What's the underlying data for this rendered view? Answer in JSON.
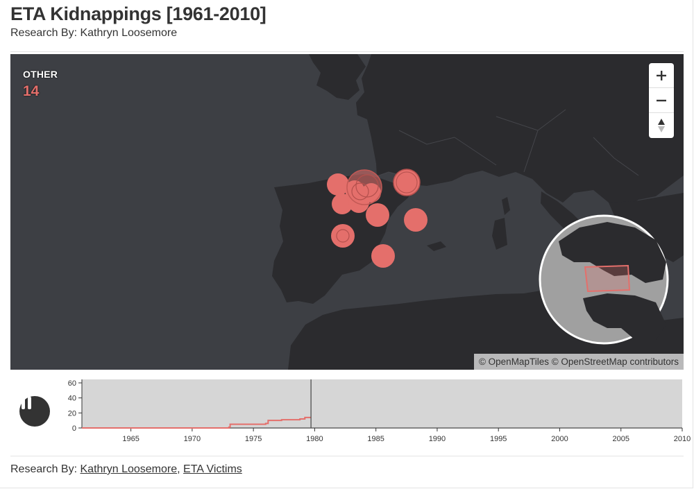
{
  "header": {
    "title": "ETA Kidnappings [1961-2010]",
    "subtitle": "Research By: Kathryn Loosemore"
  },
  "map": {
    "category_label": "OTHER",
    "category_count": "14",
    "attribution": "© OpenMapTiles © OpenStreetMap contributors",
    "zoom_in": "+",
    "zoom_out": "−",
    "accent_color": "#e46f6b",
    "land_color": "#2b2b2e",
    "sea_color": "#3d3f44",
    "icons": [
      "plus-icon",
      "minus-icon",
      "compass-icon"
    ]
  },
  "timeline": {
    "play_state": "playing",
    "icon": "pause-icon",
    "y_ticks": [
      "0",
      "20",
      "40",
      "60"
    ],
    "x_ticks": [
      "1965",
      "1970",
      "1975",
      "1980",
      "1985",
      "1990",
      "1995",
      "2000",
      "2005",
      "2010"
    ],
    "current_year": 1979.7
  },
  "chart_data": {
    "type": "line",
    "title": "",
    "xlabel": "",
    "ylabel": "",
    "xlim": [
      1961,
      2010
    ],
    "ylim": [
      0,
      60
    ],
    "x": [
      1961,
      1973,
      1973.1,
      1976,
      1976.2,
      1977.3,
      1978.8,
      1979.2,
      1979.7
    ],
    "series": [
      {
        "values": [
          0,
          1,
          5,
          6,
          10,
          11,
          12,
          14,
          14
        ]
      }
    ],
    "current_marker_x": 1979.7
  },
  "footer": {
    "prefix": "Research By:",
    "link1": "Kathryn Loosemore",
    "separator": ",",
    "link2": "ETA Victims"
  }
}
